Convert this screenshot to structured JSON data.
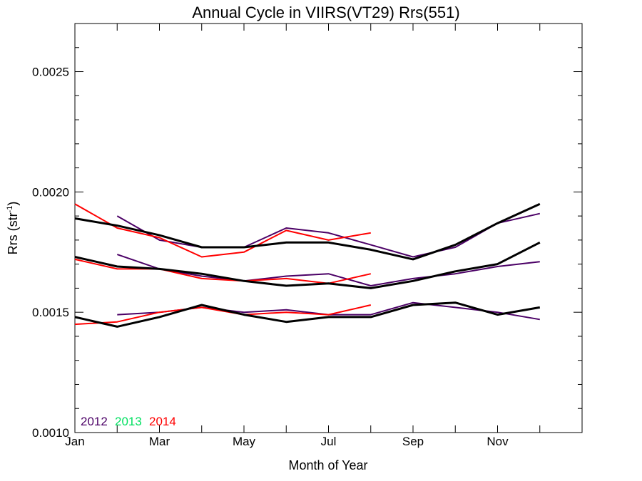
{
  "chart_data": {
    "type": "line",
    "title": "Annual Cycle in VIIRS(VT29) Rrs(551)",
    "xlabel": "Month of Year",
    "ylabel_main": "Rrs (str",
    "ylabel_sup": "-1",
    "ylabel_end": ")",
    "xlim": [
      1,
      13
    ],
    "ylim": [
      0.001,
      0.0027
    ],
    "x_ticks": [
      {
        "value": 1,
        "label": "Jan"
      },
      {
        "value": 3,
        "label": "Mar"
      },
      {
        "value": 5,
        "label": "May"
      },
      {
        "value": 7,
        "label": "Jul"
      },
      {
        "value": 9,
        "label": "Sep"
      },
      {
        "value": 11,
        "label": "Nov"
      }
    ],
    "y_ticks": [
      {
        "value": 0.001,
        "label": "0.0010"
      },
      {
        "value": 0.0015,
        "label": "0.0015"
      },
      {
        "value": 0.002,
        "label": "0.0020"
      },
      {
        "value": 0.0025,
        "label": "0.0025"
      }
    ],
    "legend": {
      "placement": "bottom-left",
      "entries": [
        {
          "name": "2012",
          "color": "#4b0066"
        },
        {
          "name": "2013",
          "color": "#00e060"
        },
        {
          "name": "2014",
          "color": "#ff0000"
        }
      ]
    },
    "colors": {
      "2012": "#4b0066",
      "2013": "#00e060",
      "2014": "#ff0000",
      "climatology": "#000000"
    },
    "series": [
      {
        "group": "upper",
        "year": "2012",
        "x": [
          2,
          3,
          4,
          5,
          6,
          7,
          8,
          9,
          10,
          11,
          12
        ],
        "y": [
          0.0019,
          0.0018,
          0.00177,
          0.00177,
          0.00185,
          0.00183,
          0.00178,
          0.00173,
          0.00177,
          0.00187,
          0.00191
        ]
      },
      {
        "group": "upper",
        "year": "2014",
        "x": [
          1,
          2,
          3,
          4,
          5,
          6,
          7,
          8
        ],
        "y": [
          0.00195,
          0.00185,
          0.00181,
          0.00173,
          0.00175,
          0.00184,
          0.0018,
          0.00183
        ]
      },
      {
        "group": "upper",
        "year": "climatology",
        "x": [
          1,
          2,
          3,
          4,
          5,
          6,
          7,
          8,
          9,
          10,
          11,
          12
        ],
        "y": [
          0.00189,
          0.00186,
          0.00182,
          0.00177,
          0.00177,
          0.00179,
          0.00179,
          0.00176,
          0.00172,
          0.00178,
          0.00187,
          0.00195
        ]
      },
      {
        "group": "middle",
        "year": "2012",
        "x": [
          2,
          3,
          4,
          5,
          6,
          7,
          8,
          9,
          10,
          11,
          12
        ],
        "y": [
          0.00174,
          0.00168,
          0.00165,
          0.00163,
          0.00165,
          0.00166,
          0.00161,
          0.00164,
          0.00166,
          0.00169,
          0.00171
        ]
      },
      {
        "group": "middle",
        "year": "2014",
        "x": [
          1,
          2,
          3,
          4,
          5,
          6,
          7,
          8
        ],
        "y": [
          0.00172,
          0.00168,
          0.00168,
          0.00164,
          0.00163,
          0.00164,
          0.00162,
          0.00166
        ]
      },
      {
        "group": "middle",
        "year": "climatology",
        "x": [
          1,
          2,
          3,
          4,
          5,
          6,
          7,
          8,
          9,
          10,
          11,
          12
        ],
        "y": [
          0.00173,
          0.00169,
          0.00168,
          0.00166,
          0.00163,
          0.00161,
          0.00162,
          0.0016,
          0.00163,
          0.00167,
          0.0017,
          0.00179
        ]
      },
      {
        "group": "lower",
        "year": "2012",
        "x": [
          2,
          3,
          4,
          5,
          6,
          7,
          8,
          9,
          10,
          11,
          12
        ],
        "y": [
          0.00149,
          0.0015,
          0.00152,
          0.0015,
          0.00151,
          0.00149,
          0.00149,
          0.00154,
          0.00152,
          0.0015,
          0.00147
        ]
      },
      {
        "group": "lower",
        "year": "2014",
        "x": [
          1,
          2,
          3,
          4,
          5,
          6,
          7,
          8
        ],
        "y": [
          0.00145,
          0.00146,
          0.0015,
          0.00152,
          0.00149,
          0.0015,
          0.00149,
          0.00153
        ]
      },
      {
        "group": "lower",
        "year": "climatology",
        "x": [
          1,
          2,
          3,
          4,
          5,
          6,
          7,
          8,
          9,
          10,
          11,
          12
        ],
        "y": [
          0.00148,
          0.00144,
          0.00148,
          0.00153,
          0.00149,
          0.00146,
          0.00148,
          0.00148,
          0.00153,
          0.00154,
          0.00149,
          0.00152
        ]
      }
    ]
  }
}
